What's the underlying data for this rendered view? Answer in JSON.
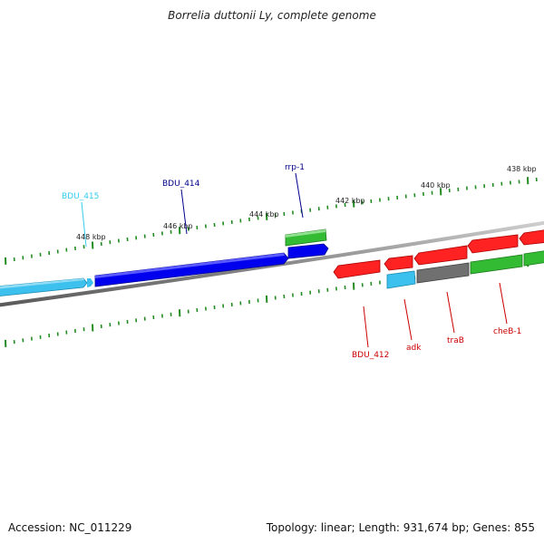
{
  "title": "Borrelia duttonii Ly, complete genome",
  "footer": {
    "accession": "Accession: NC_011229",
    "stats": "Topology: linear; Length: 931,674 bp; Genes: 855"
  },
  "colors": {
    "backbone": "#808080",
    "ticks": "#228b22",
    "forward_label": "#00008b",
    "forward_alt_label": "#33ccee",
    "reverse_label": "#cc0000"
  },
  "scale": {
    "labels": [
      "448 kbp",
      "446 kbp",
      "444 kbp",
      "442 kbp",
      "440 kbp",
      "438 kbp"
    ]
  },
  "genes": [
    {
      "label": "BDU_415",
      "strand": "forward",
      "color": "#3cc0ee"
    },
    {
      "label": "BDU_414",
      "strand": "forward",
      "color": "#0000ee"
    },
    {
      "label": "rrp-1",
      "strand": "forward",
      "color": "#33bb33"
    },
    {
      "label": "BDU_412",
      "strand": "reverse",
      "color": "#ff2222"
    },
    {
      "label": "adk",
      "strand": "reverse",
      "color": "#ff2222"
    },
    {
      "label": "traB",
      "strand": "reverse",
      "color": "#ff2222"
    },
    {
      "label": "cheB-1",
      "strand": "reverse",
      "color": "#ff2222"
    }
  ]
}
